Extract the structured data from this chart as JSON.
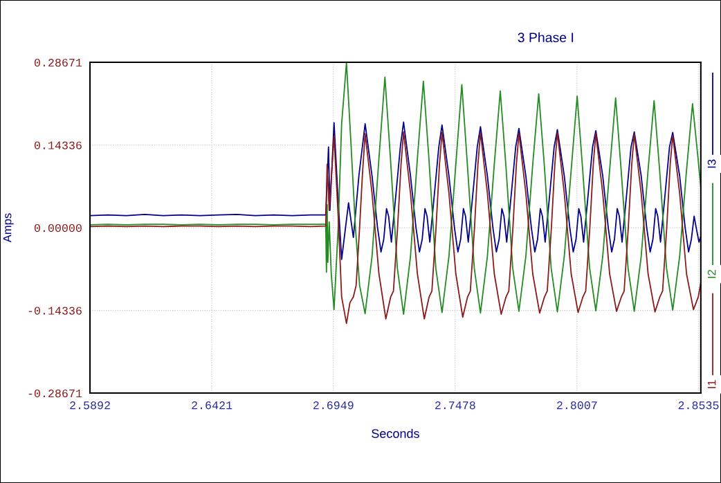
{
  "chart_data": {
    "type": "line",
    "title": "3 Phase I",
    "xlabel": "Seconds",
    "ylabel": "Amps",
    "xlim": [
      2.5892,
      2.8545
    ],
    "xticks": [
      2.5892,
      2.6421,
      2.6949,
      2.7478,
      2.8007,
      2.8535
    ],
    "ylim": [
      -0.28671,
      0.28671
    ],
    "yticks": [
      0.28671,
      0.14336,
      {
        "value": 0,
        "label": "0.00000"
      },
      -0.14336,
      -0.28671
    ],
    "grid": true,
    "legend": "right",
    "marker": "none",
    "line_style": "solid",
    "series": [
      {
        "name": "I3",
        "color": "#00008b",
        "x": [
          2.5892,
          2.597,
          2.605,
          2.613,
          2.621,
          2.629,
          2.637,
          2.645,
          2.653,
          2.661,
          2.669,
          2.677,
          2.685,
          2.6916,
          2.6928,
          2.6934,
          2.694,
          2.6952,
          2.6968,
          2.6985,
          2.7015,
          2.7036,
          2.706,
          2.7087,
          2.7117,
          2.7141,
          2.7156,
          2.7168,
          2.718,
          2.7189,
          2.7201,
          2.7222,
          2.724,
          2.7254,
          2.7284,
          2.7308,
          2.7323,
          2.7335,
          2.7347,
          2.7356,
          2.7368,
          2.7389,
          2.7407,
          2.7421,
          2.7451,
          2.7475,
          2.749,
          2.7502,
          2.7514,
          2.7523,
          2.7535,
          2.7556,
          2.7574,
          2.7588,
          2.7618,
          2.7642,
          2.7657,
          2.7669,
          2.7681,
          2.769,
          2.7702,
          2.7723,
          2.7741,
          2.7755,
          2.7785,
          2.7809,
          2.7824,
          2.7836,
          2.7848,
          2.7857,
          2.7869,
          2.789,
          2.7908,
          2.7922,
          2.7952,
          2.7976,
          2.7991,
          2.8003,
          2.8015,
          2.8024,
          2.8036,
          2.8057,
          2.8075,
          2.8089,
          2.8119,
          2.8143,
          2.8158,
          2.817,
          2.8182,
          2.8191,
          2.8203,
          2.8224,
          2.8242,
          2.8256,
          2.8286,
          2.831,
          2.8325,
          2.8337,
          2.8349,
          2.8358,
          2.837,
          2.8391,
          2.8409,
          2.8423,
          2.8453,
          2.8477,
          2.8492,
          2.8504,
          2.8516,
          2.8525,
          2.8537,
          2.8545
        ],
        "values": [
          0.021,
          0.022,
          0.021,
          0.023,
          0.021,
          0.022,
          0.021,
          0.022,
          0.023,
          0.021,
          0.022,
          0.021,
          0.022,
          0.022,
          0.14,
          0.03,
          0.08,
          0.182,
          0.06,
          -0.055,
          0.043,
          -0.017,
          0.09,
          0.18,
          0.09,
          0.0,
          -0.042,
          -0.02,
          0.033,
          0.02,
          -0.025,
          0.063,
          0.14,
          0.183,
          0.09,
          0.0,
          -0.042,
          -0.02,
          0.033,
          0.02,
          -0.025,
          0.063,
          0.14,
          0.178,
          0.09,
          0.0,
          -0.042,
          -0.02,
          0.033,
          0.02,
          -0.025,
          0.063,
          0.14,
          0.175,
          0.09,
          0.0,
          -0.042,
          -0.02,
          0.033,
          0.02,
          -0.025,
          0.063,
          0.14,
          0.172,
          0.09,
          0.0,
          -0.042,
          -0.02,
          0.033,
          0.02,
          -0.025,
          0.063,
          0.14,
          0.17,
          0.09,
          0.0,
          -0.042,
          -0.02,
          0.033,
          0.02,
          -0.025,
          0.063,
          0.14,
          0.168,
          0.09,
          0.0,
          -0.042,
          -0.02,
          0.033,
          0.02,
          -0.025,
          0.063,
          0.14,
          0.166,
          0.09,
          0.0,
          -0.042,
          -0.02,
          0.033,
          0.02,
          -0.025,
          0.063,
          0.14,
          0.165,
          0.09,
          0.0,
          -0.042,
          -0.02,
          0.02,
          0.0,
          -0.025,
          -0.015
        ]
      },
      {
        "name": "I2",
        "color": "#228b22",
        "x": [
          2.5892,
          2.597,
          2.605,
          2.613,
          2.621,
          2.629,
          2.637,
          2.645,
          2.653,
          2.661,
          2.669,
          2.677,
          2.685,
          2.6916,
          2.6919,
          2.6922,
          2.6925,
          2.6931,
          2.694,
          2.6952,
          2.697,
          2.6985,
          2.7006,
          2.7025,
          2.7045,
          2.7063,
          2.7087,
          2.7117,
          2.7147,
          2.7173,
          2.7197,
          2.7227,
          2.7254,
          2.7284,
          2.7314,
          2.734,
          2.7364,
          2.7394,
          2.7421,
          2.7451,
          2.7481,
          2.7507,
          2.7531,
          2.7561,
          2.7588,
          2.7618,
          2.7648,
          2.7674,
          2.7698,
          2.7728,
          2.7755,
          2.7785,
          2.7815,
          2.7841,
          2.7865,
          2.7895,
          2.7922,
          2.7952,
          2.7982,
          2.8008,
          2.8032,
          2.8062,
          2.8089,
          2.8119,
          2.8149,
          2.8175,
          2.8199,
          2.8229,
          2.8256,
          2.8286,
          2.8316,
          2.8342,
          2.8366,
          2.8396,
          2.8423,
          2.8453,
          2.8483,
          2.8509,
          2.8533,
          2.8545
        ],
        "values": [
          0.005,
          0.006,
          0.005,
          0.006,
          0.006,
          0.005,
          0.006,
          0.005,
          0.006,
          0.006,
          0.005,
          0.006,
          0.006,
          0.006,
          -0.077,
          0.04,
          -0.06,
          0.01,
          -0.08,
          -0.142,
          0.0,
          0.18,
          0.286,
          0.15,
          0.0,
          -0.1,
          -0.149,
          -0.05,
          0.12,
          0.261,
          0.12,
          -0.07,
          -0.15,
          -0.05,
          0.12,
          0.254,
          0.12,
          -0.07,
          -0.147,
          -0.05,
          0.11,
          0.248,
          0.11,
          -0.07,
          -0.148,
          -0.05,
          0.11,
          0.237,
          0.11,
          -0.07,
          -0.145,
          -0.05,
          0.11,
          0.232,
          0.11,
          -0.07,
          -0.146,
          -0.05,
          0.1,
          0.228,
          0.1,
          -0.07,
          -0.144,
          -0.05,
          0.1,
          0.225,
          0.1,
          -0.07,
          -0.145,
          -0.05,
          0.1,
          0.22,
          0.1,
          -0.07,
          -0.143,
          -0.05,
          0.1,
          0.215,
          0.12,
          0.07
        ]
      },
      {
        "name": "I1",
        "color": "#8b1a1a",
        "x": [
          2.5892,
          2.597,
          2.605,
          2.613,
          2.621,
          2.629,
          2.637,
          2.645,
          2.653,
          2.661,
          2.669,
          2.677,
          2.685,
          2.6916,
          2.6922,
          2.6931,
          2.6952,
          2.697,
          2.6985,
          2.7006,
          2.7021,
          2.7036,
          2.7048,
          2.7063,
          2.7075,
          2.7087,
          2.7117,
          2.7147,
          2.7177,
          2.7198,
          2.721,
          2.7228,
          2.7243,
          2.7254,
          2.7284,
          2.7314,
          2.7344,
          2.7365,
          2.7377,
          2.7395,
          2.741,
          2.7421,
          2.7451,
          2.7481,
          2.7511,
          2.7532,
          2.7544,
          2.7562,
          2.7577,
          2.7588,
          2.7618,
          2.7648,
          2.7678,
          2.7699,
          2.7711,
          2.7729,
          2.7744,
          2.7755,
          2.7785,
          2.7815,
          2.7845,
          2.7866,
          2.7878,
          2.7896,
          2.7911,
          2.7922,
          2.7952,
          2.7982,
          2.8012,
          2.8033,
          2.8045,
          2.8063,
          2.8078,
          2.8089,
          2.8119,
          2.8149,
          2.8179,
          2.82,
          2.8212,
          2.823,
          2.8245,
          2.8256,
          2.8286,
          2.8316,
          2.8346,
          2.8367,
          2.8379,
          2.8397,
          2.8412,
          2.8423,
          2.8453,
          2.8483,
          2.8513,
          2.8534,
          2.8545
        ],
        "values": [
          0.002,
          0.003,
          0.002,
          0.003,
          0.002,
          0.003,
          0.003,
          0.002,
          0.003,
          0.002,
          0.003,
          0.003,
          0.002,
          0.003,
          0.11,
          0.03,
          0.159,
          0.02,
          -0.12,
          -0.166,
          -0.13,
          -0.12,
          -0.1,
          0.0,
          0.09,
          0.163,
          0.06,
          -0.08,
          -0.158,
          -0.12,
          -0.11,
          0.0,
          0.11,
          0.166,
          0.06,
          -0.08,
          -0.158,
          -0.12,
          -0.11,
          0.0,
          0.11,
          0.165,
          0.06,
          -0.08,
          -0.155,
          -0.12,
          -0.11,
          0.0,
          0.11,
          0.165,
          0.06,
          -0.08,
          -0.15,
          -0.12,
          -0.11,
          0.0,
          0.11,
          0.164,
          0.06,
          -0.08,
          -0.148,
          -0.12,
          -0.11,
          0.0,
          0.11,
          0.165,
          0.06,
          -0.08,
          -0.147,
          -0.12,
          -0.11,
          0.0,
          0.11,
          0.163,
          0.06,
          -0.08,
          -0.145,
          -0.12,
          -0.11,
          0.0,
          0.11,
          0.162,
          0.06,
          -0.08,
          -0.146,
          -0.12,
          -0.11,
          0.0,
          0.11,
          0.16,
          0.06,
          -0.08,
          -0.142,
          -0.12,
          -0.095
        ]
      }
    ]
  }
}
